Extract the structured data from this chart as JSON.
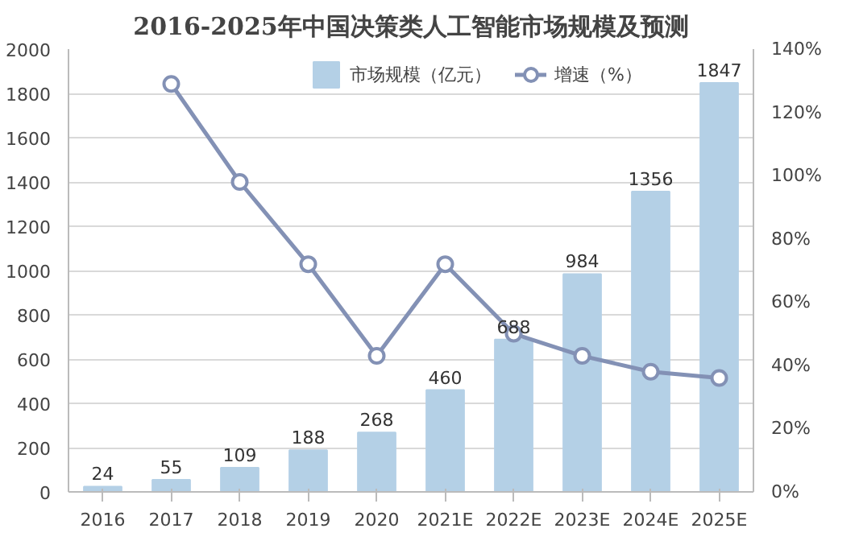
{
  "chart_data": {
    "type": "bar",
    "title": "2016-2025年中国决策类人工智能市场规模及预测",
    "categories": [
      "2016",
      "2017",
      "2018",
      "2019",
      "2020",
      "2021E",
      "2022E",
      "2023E",
      "2024E",
      "2025E"
    ],
    "series": [
      {
        "name": "市场规模（亿元）",
        "color": "#b4d0e6",
        "values": [
          24,
          55,
          109,
          188,
          268,
          460,
          688,
          984,
          1356,
          1847
        ],
        "value_labels": [
          "24",
          "55",
          "109",
          "188",
          "268",
          "460",
          "688",
          "984",
          "1356",
          "1847"
        ]
      },
      {
        "name": "增速（%）",
        "type": "line",
        "axis": "y2",
        "color": "#8391b5",
        "marker": "circle",
        "values": [
          null,
          129,
          98,
          72,
          43,
          72,
          50,
          43,
          38,
          36
        ]
      }
    ],
    "ylim": [
      0,
      2000
    ],
    "yticks": [
      0,
      200,
      400,
      600,
      800,
      1000,
      1200,
      1400,
      1600,
      1800,
      2000
    ],
    "y2lim": [
      0,
      140
    ],
    "y2ticks": [
      {
        "value": 0,
        "label": "0%"
      },
      {
        "value": 20,
        "label": "20%"
      },
      {
        "value": 40,
        "label": "40%"
      },
      {
        "value": 60,
        "label": "60%"
      },
      {
        "value": 80,
        "label": "80%"
      },
      {
        "value": 100,
        "label": "100%"
      },
      {
        "value": 120,
        "label": "120%"
      },
      {
        "value": 140,
        "label": "140%"
      }
    ],
    "grid": "y",
    "legend": "top right"
  }
}
